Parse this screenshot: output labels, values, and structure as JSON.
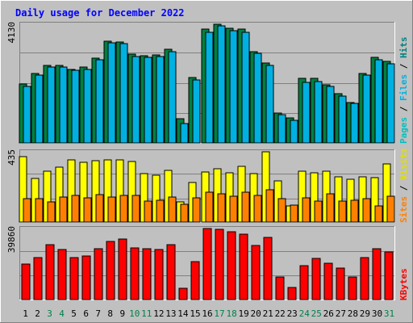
{
  "chart_data": {
    "type": "bar",
    "title": "Daily usage for December 2022",
    "categories": [
      "1",
      "2",
      "3",
      "4",
      "5",
      "6",
      "7",
      "8",
      "9",
      "10",
      "11",
      "12",
      "13",
      "14",
      "15",
      "16",
      "17",
      "18",
      "19",
      "20",
      "21",
      "22",
      "23",
      "24",
      "25",
      "26",
      "27",
      "28",
      "29",
      "30",
      "31"
    ],
    "weekend_days": [
      "3",
      "4",
      "10",
      "11",
      "17",
      "18",
      "24",
      "25",
      "31"
    ],
    "panels": [
      {
        "name": "pages-files-hits",
        "ymax_label": "4130",
        "ymax": 4130,
        "right_label_parts": [
          {
            "text": "Pages",
            "color": "#00c0c0"
          },
          {
            "text": " / ",
            "color": "#000000"
          },
          {
            "text": "Files",
            "color": "#00b0e0"
          },
          {
            "text": " / ",
            "color": "#000000"
          },
          {
            "text": "Hits",
            "color": "#008080"
          }
        ],
        "series": [
          {
            "name": "Hits",
            "color": "#008040",
            "values": [
              2050,
              2430,
              2710,
              2700,
              2570,
              2640,
              2950,
              3550,
              3500,
              3090,
              3040,
              3060,
              3270,
              830,
              2280,
              3950,
              4130,
              3980,
              3950,
              3180,
              2780,
              1050,
              860,
              2240,
              2250,
              2030,
              1700,
              1410,
              2430,
              2980,
              2840
            ]
          },
          {
            "name": "Files",
            "color": "#00b0e0",
            "values": [
              1960,
              2350,
              2640,
              2630,
              2520,
              2570,
              2900,
              3480,
              3460,
              3020,
              2990,
              3000,
              3180,
              680,
              2200,
              3850,
              4070,
              3900,
              3850,
              3120,
              2700,
              980,
              800,
              2120,
              2140,
              1960,
              1640,
              1380,
              2350,
              2890,
              2760
            ]
          }
        ]
      },
      {
        "name": "sites-visits",
        "ymax_label": "435",
        "ymax": 435,
        "right_label_parts": [
          {
            "text": "Sites",
            "color": "#ff8000"
          },
          {
            "text": " / ",
            "color": "#000000"
          },
          {
            "text": "Visits",
            "color": "#e0e000"
          }
        ],
        "series": [
          {
            "name": "Visits",
            "color": "#ffff00",
            "values": [
              405,
              272,
              315,
              340,
              385,
              368,
              380,
              385,
              385,
              375,
              300,
              290,
              320,
              125,
              245,
              310,
              330,
              305,
              345,
              300,
              435,
              255,
              100,
              315,
              305,
              315,
              280,
              265,
              280,
              275,
              360
            ]
          },
          {
            "name": "Sites",
            "color": "#ff8000",
            "values": [
              145,
              145,
              125,
              155,
              165,
              150,
              170,
              155,
              165,
              165,
              130,
              135,
              155,
              110,
              150,
              185,
              175,
              160,
              185,
              165,
              200,
              145,
              105,
              150,
              130,
              175,
              130,
              135,
              145,
              100,
              160
            ]
          }
        ]
      },
      {
        "name": "kbytes",
        "ymax_label": "39860",
        "ymax": 39860,
        "right_label_parts": [
          {
            "text": "KBytes",
            "color": "#ff0000"
          }
        ],
        "series": [
          {
            "name": "KBytes",
            "color": "#ff0000",
            "values": [
              19800,
              23400,
              30800,
              28000,
              23500,
              24400,
              28600,
              32500,
              34100,
              29100,
              28600,
              28200,
              30800,
              6300,
              21300,
              39860,
              39200,
              38200,
              36500,
              30200,
              34900,
              12900,
              6900,
              19000,
              23300,
              20200,
              17600,
              12600,
              23700,
              28700,
              26800
            ]
          }
        ]
      }
    ]
  }
}
